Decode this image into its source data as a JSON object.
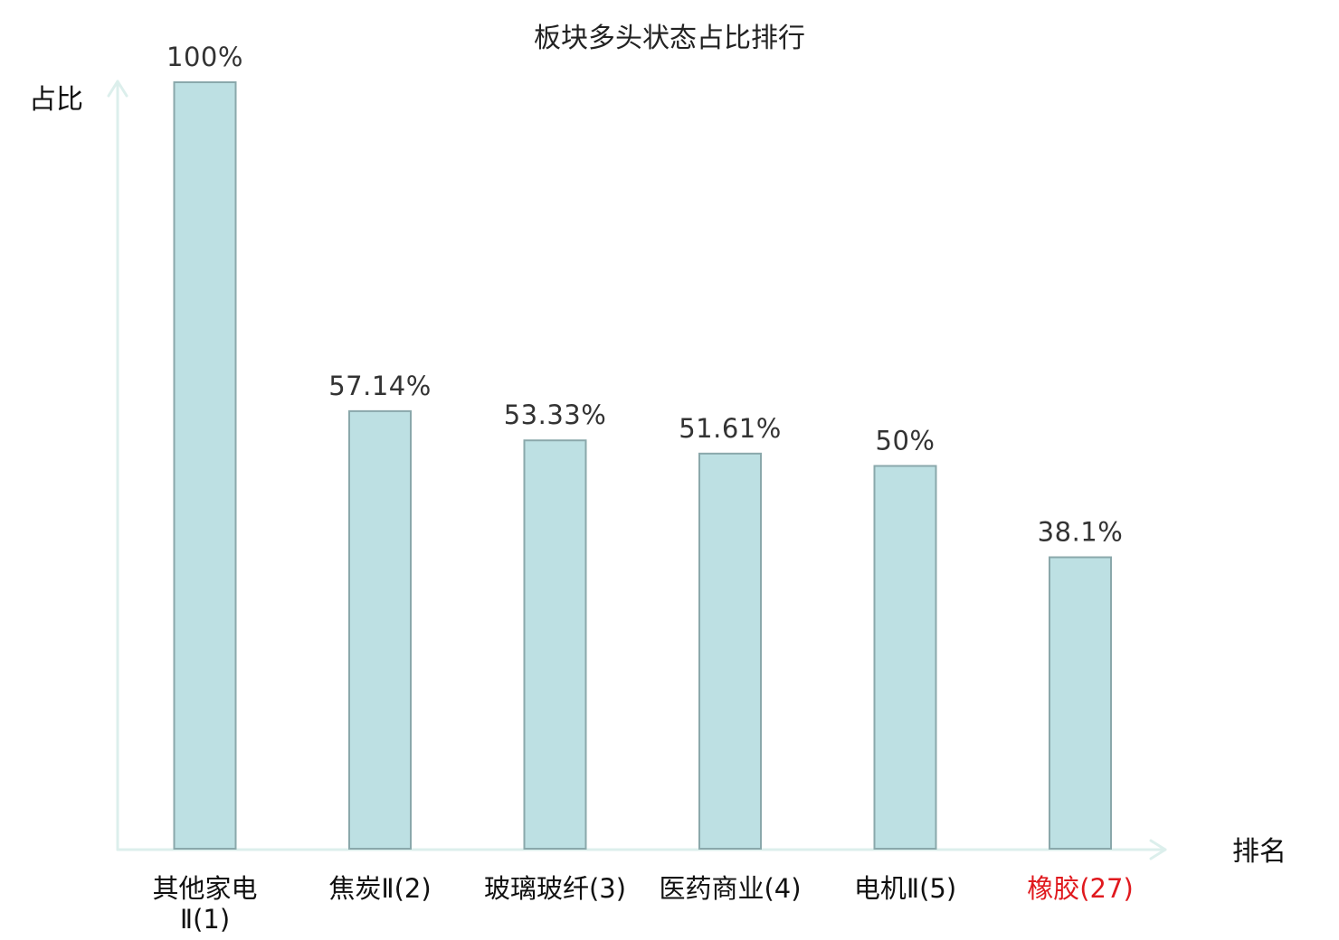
{
  "chart_data": {
    "type": "bar",
    "title": "板块多头状态占比排行",
    "ylabel": "占比",
    "xlabel": "排名",
    "categories": [
      {
        "lines": [
          "其他家电",
          "Ⅱ(1)"
        ],
        "highlight": false
      },
      {
        "lines": [
          "焦炭Ⅱ(2)"
        ],
        "highlight": false
      },
      {
        "lines": [
          "玻璃玻纤(3)"
        ],
        "highlight": false
      },
      {
        "lines": [
          "医药商业(4)"
        ],
        "highlight": false
      },
      {
        "lines": [
          "电机Ⅱ(5)"
        ],
        "highlight": false
      },
      {
        "lines": [
          "橡胶(27)"
        ],
        "highlight": true
      }
    ],
    "values": [
      100,
      57.14,
      53.33,
      51.61,
      50,
      38.1
    ],
    "value_labels": [
      "100%",
      "57.14%",
      "53.33%",
      "51.61%",
      "50%",
      "38.1%"
    ],
    "ylim": [
      0,
      100
    ],
    "grid": false,
    "legend": "none"
  },
  "colors": {
    "bar_fill": "#bde0e3",
    "bar_stroke": "#8aa8ab",
    "axis": "#dcefec",
    "highlight_text": "#e0191e",
    "normal_text": "#111111"
  }
}
